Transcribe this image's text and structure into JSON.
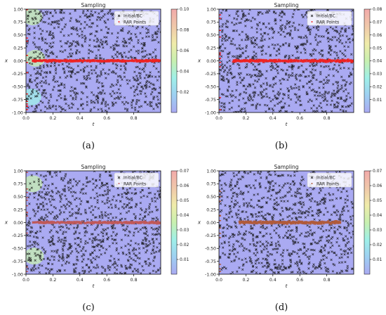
{
  "captions": [
    "(a)",
    "(b)",
    "(c)",
    "(d)"
  ],
  "chart_data": [
    {
      "type": "scatter",
      "title": "Sampling",
      "xlabel": "t",
      "ylabel": "x",
      "xlim": [
        0,
        1
      ],
      "ylim": [
        -1,
        1
      ],
      "xticks": [
        "0.0",
        "0.2",
        "0.4",
        "0.6",
        "0.8"
      ],
      "yticks": [
        "1.00",
        "0.75",
        "0.50",
        "0.25",
        "0.00",
        "-0.25",
        "-0.50",
        "-0.75",
        "-1.00"
      ],
      "legend": {
        "placement": "top-right",
        "entries": [
          "Initial/BC",
          "RAR Points"
        ]
      },
      "colorbar": {
        "range": [
          0,
          0.1
        ],
        "ticks": [
          "0.10",
          "0.08",
          "0.06",
          "0.04",
          "0.02"
        ]
      },
      "background_color": "#aaaaf2",
      "rar_color": "#ee2222",
      "band": {
        "t_range": [
          0.05,
          1.0
        ],
        "x_center": 0.0,
        "x_spread": 0.03
      },
      "highlight_regions": [
        {
          "t": 0.05,
          "x": 0.85,
          "value": 0.05
        },
        {
          "t": 0.07,
          "x": 0.05,
          "value": 0.05
        },
        {
          "t": 0.04,
          "x": -0.7,
          "value": 0.04
        }
      ]
    },
    {
      "type": "scatter",
      "title": "Sampling",
      "xlabel": "t",
      "ylabel": "x",
      "xlim": [
        0,
        1
      ],
      "ylim": [
        -1,
        1
      ],
      "xticks": [
        "0.0",
        "0.2",
        "0.4",
        "0.6",
        "0.8"
      ],
      "yticks": [
        "1.00",
        "0.75",
        "0.50",
        "0.25",
        "0.00",
        "-0.25",
        "-0.50",
        "-0.75",
        "-1.00"
      ],
      "legend": {
        "placement": "top-right",
        "entries": [
          "Initial/BC",
          "RAR Points"
        ]
      },
      "colorbar": {
        "range": [
          0,
          0.08
        ],
        "ticks": [
          "0.08",
          "0.07",
          "0.06",
          "0.05",
          "0.04",
          "0.03",
          "0.02",
          "0.01"
        ]
      },
      "background_color": "#aaaaf2",
      "rar_color": "#ee2222",
      "band": {
        "t_range": [
          0.1,
          1.0
        ],
        "x_center": 0.0,
        "x_spread": 0.035
      },
      "highlight_regions": []
    },
    {
      "type": "scatter",
      "title": "Sampling",
      "xlabel": "t",
      "ylabel": "x",
      "xlim": [
        0,
        1
      ],
      "ylim": [
        -1,
        1
      ],
      "xticks": [
        "0.0",
        "0.2",
        "0.4",
        "0.6",
        "0.8"
      ],
      "yticks": [
        "1.00",
        "0.75",
        "0.50",
        "0.25",
        "0.00",
        "-0.25",
        "-0.50",
        "-0.75",
        "-1.00"
      ],
      "legend": {
        "placement": "top-right",
        "entries": [
          "Initial/BC",
          "RAR Points"
        ]
      },
      "colorbar": {
        "range": [
          0,
          0.07
        ],
        "ticks": [
          "0.07",
          "0.06",
          "0.05",
          "0.04",
          "0.03",
          "0.02",
          "0.01"
        ]
      },
      "background_color": "#aaaaf2",
      "rar_color": "#c05858",
      "band": {
        "t_range": [
          0.05,
          1.0
        ],
        "x_center": 0.0,
        "x_spread": 0.03
      },
      "highlight_regions": [
        {
          "t": 0.05,
          "x": 0.75,
          "value": 0.04
        },
        {
          "t": 0.06,
          "x": -0.65,
          "value": 0.04
        }
      ]
    },
    {
      "type": "scatter",
      "title": "Sampling",
      "xlabel": "t",
      "ylabel": "x",
      "xlim": [
        0,
        1
      ],
      "ylim": [
        -1,
        1
      ],
      "xticks": [
        "0.0",
        "0.2",
        "0.4",
        "0.6",
        "0.8"
      ],
      "yticks": [
        "1.00",
        "0.75",
        "0.50",
        "0.25",
        "0.00",
        "-0.25",
        "-0.50",
        "-0.75",
        "-1.00"
      ],
      "legend": {
        "placement": "top-right",
        "entries": [
          "Initial/BC",
          "RAR Points"
        ]
      },
      "colorbar": {
        "range": [
          0,
          0.07
        ],
        "ticks": [
          "0.07",
          "0.06",
          "0.05",
          "0.04",
          "0.03",
          "0.02",
          "0.01"
        ]
      },
      "background_color": "#aaaaf2",
      "rar_color": "#b05a3a",
      "band": {
        "t_range": [
          0.15,
          0.9
        ],
        "x_center": 0.0,
        "x_spread": 0.04
      },
      "highlight_regions": []
    }
  ]
}
